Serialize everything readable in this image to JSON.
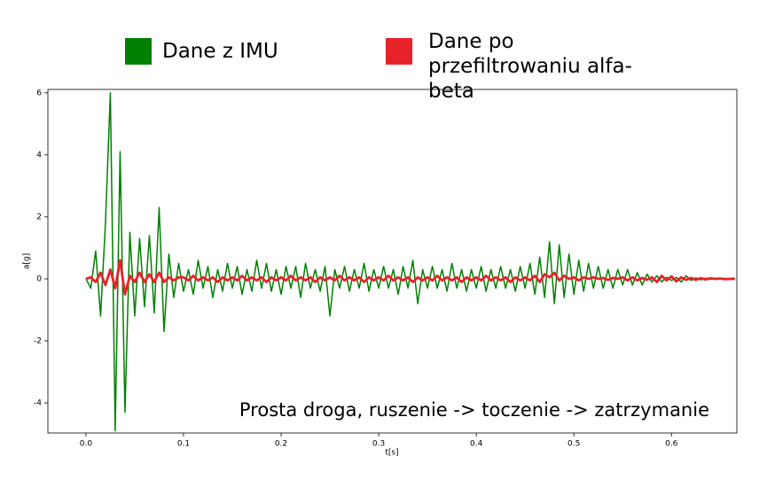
{
  "chart_data": {
    "type": "line",
    "series": [
      {
        "name": "Dane z IMU",
        "color": "#008000",
        "values": [
          0,
          -0.3,
          0.9,
          -1.2,
          1.8,
          6.0,
          -4.9,
          4.1,
          -4.3,
          1.5,
          -1.2,
          1.3,
          -0.9,
          1.4,
          -1.1,
          2.3,
          -1.7,
          0.8,
          -0.6,
          0.5,
          -0.4,
          0.3,
          -0.5,
          0.6,
          -0.3,
          0.4,
          -0.6,
          0.3,
          -0.4,
          0.5,
          -0.3,
          0.4,
          -0.5,
          0.3,
          -0.4,
          0.6,
          -0.3,
          0.5,
          -0.4,
          0.3,
          -0.5,
          0.4,
          -0.3,
          0.4,
          -0.6,
          0.5,
          -0.3,
          0.3,
          -0.4,
          0.4,
          -1.2,
          0.3,
          -0.3,
          0.4,
          -0.4,
          0.3,
          -0.3,
          0.5,
          -0.4,
          0.3,
          -0.3,
          0.4,
          -0.3,
          0.3,
          -0.5,
          0.4,
          -0.3,
          0.6,
          -0.8,
          0.3,
          -0.3,
          0.4,
          -0.3,
          0.3,
          -0.4,
          0.5,
          -0.3,
          0.3,
          -0.4,
          0.3,
          -0.3,
          0.4,
          -0.4,
          0.3,
          -0.3,
          0.4,
          -0.3,
          0.3,
          -0.4,
          0.4,
          -0.3,
          0.5,
          -0.5,
          0.7,
          -0.6,
          1.2,
          -0.8,
          1.1,
          -0.6,
          0.8,
          -0.5,
          0.6,
          -0.4,
          0.5,
          -0.3,
          0.4,
          -0.3,
          0.3,
          -0.3,
          0.3,
          -0.2,
          0.3,
          -0.2,
          0.2,
          -0.2,
          0.15,
          -0.1,
          0.1,
          -0.1,
          0.05,
          -0.05,
          0.05,
          -0.1,
          0.1,
          -0.05,
          0.03,
          -0.03,
          0.02,
          -0.02,
          0.02,
          0,
          0.01,
          -0.01,
          0
        ]
      },
      {
        "name": "Dane po przefiltrowaniu alfa-beta",
        "color": "#e8222a",
        "values": [
          0,
          0.05,
          -0.1,
          0.2,
          -0.2,
          0.3,
          -0.3,
          0.6,
          -0.5,
          0.1,
          -0.1,
          0.2,
          -0.1,
          0.15,
          -0.1,
          0.2,
          -0.1,
          0.05,
          -0.05,
          0.05,
          0.05,
          -0.05,
          0.1,
          -0.05,
          0.05,
          -0.05,
          0.05,
          -0.1,
          0.05,
          -0.05,
          0.05,
          -0.05,
          0.1,
          -0.05,
          0.05,
          -0.05,
          0.05,
          -0.1,
          0.05,
          -0.05,
          0.05,
          -0.05,
          0.1,
          -0.05,
          0.05,
          -0.05,
          0.05,
          -0.1,
          0.05,
          -0.05,
          0.05,
          -0.05,
          0.1,
          -0.05,
          0.05,
          -0.05,
          0.05,
          -0.1,
          0.05,
          -0.05,
          0.05,
          -0.05,
          0.1,
          -0.05,
          0.05,
          -0.05,
          0.05,
          -0.1,
          0.05,
          -0.05,
          0.05,
          -0.05,
          0.1,
          -0.05,
          0.05,
          -0.05,
          0.05,
          -0.1,
          0.05,
          -0.05,
          0.05,
          -0.05,
          0.1,
          -0.05,
          0.05,
          -0.05,
          0.05,
          -0.1,
          0.05,
          -0.05,
          0.05,
          -0.05,
          0.1,
          -0.1,
          0.15,
          0.05,
          0.2,
          -0.05,
          0.1,
          0,
          0.05,
          -0.05,
          0.05,
          0,
          0.05,
          0,
          0.03,
          -0.03,
          0.03,
          0,
          0.05,
          -0.05,
          0.05,
          -0.05,
          0.03,
          -0.03,
          0.05,
          -0.1,
          0.1,
          -0.05,
          0.08,
          -0.08,
          0.05,
          -0.03,
          0.03,
          -0.03,
          0.02,
          -0.02,
          0.02,
          0,
          0.01,
          -0.01,
          0,
          0
        ]
      }
    ],
    "x": [
      0,
      0.005,
      0.01,
      0.015,
      0.02,
      0.025,
      0.03,
      0.035,
      0.04,
      0.045,
      0.05,
      0.055,
      0.06,
      0.065,
      0.07,
      0.075,
      0.08,
      0.085,
      0.09,
      0.095,
      0.1,
      0.105,
      0.11,
      0.115,
      0.12,
      0.125,
      0.13,
      0.135,
      0.14,
      0.145,
      0.15,
      0.155,
      0.16,
      0.165,
      0.17,
      0.175,
      0.18,
      0.185,
      0.19,
      0.195,
      0.2,
      0.205,
      0.21,
      0.215,
      0.22,
      0.225,
      0.23,
      0.235,
      0.24,
      0.245,
      0.25,
      0.255,
      0.26,
      0.265,
      0.27,
      0.275,
      0.28,
      0.285,
      0.29,
      0.295,
      0.3,
      0.305,
      0.31,
      0.315,
      0.32,
      0.325,
      0.33,
      0.335,
      0.34,
      0.345,
      0.35,
      0.355,
      0.36,
      0.365,
      0.37,
      0.375,
      0.38,
      0.385,
      0.39,
      0.395,
      0.4,
      0.405,
      0.41,
      0.415,
      0.42,
      0.425,
      0.43,
      0.435,
      0.44,
      0.445,
      0.45,
      0.455,
      0.46,
      0.465,
      0.47,
      0.475,
      0.48,
      0.485,
      0.49,
      0.495,
      0.5,
      0.505,
      0.51,
      0.515,
      0.52,
      0.525,
      0.53,
      0.535,
      0.54,
      0.545,
      0.55,
      0.555,
      0.56,
      0.565,
      0.57,
      0.575,
      0.58,
      0.585,
      0.59,
      0.595,
      0.6,
      0.605,
      0.61,
      0.615,
      0.62,
      0.625,
      0.63,
      0.635,
      0.64,
      0.645,
      0.65,
      0.655,
      0.66,
      0.665
    ],
    "xlim": [
      -0.039,
      0.667
    ],
    "xticks": [
      {
        "value": 0,
        "label": "0.0"
      },
      0.1,
      0.2,
      0.3,
      0.4,
      0.5,
      0.6
    ],
    "ylim": [
      -4.97,
      6.11
    ],
    "yticks": [
      -4,
      -2,
      0,
      2,
      4,
      6
    ],
    "x_label": "t[s]",
    "y_label": "a[g]",
    "annotation": "Prosta droga, ruszenie -> toczenie -> zatrzymanie"
  }
}
